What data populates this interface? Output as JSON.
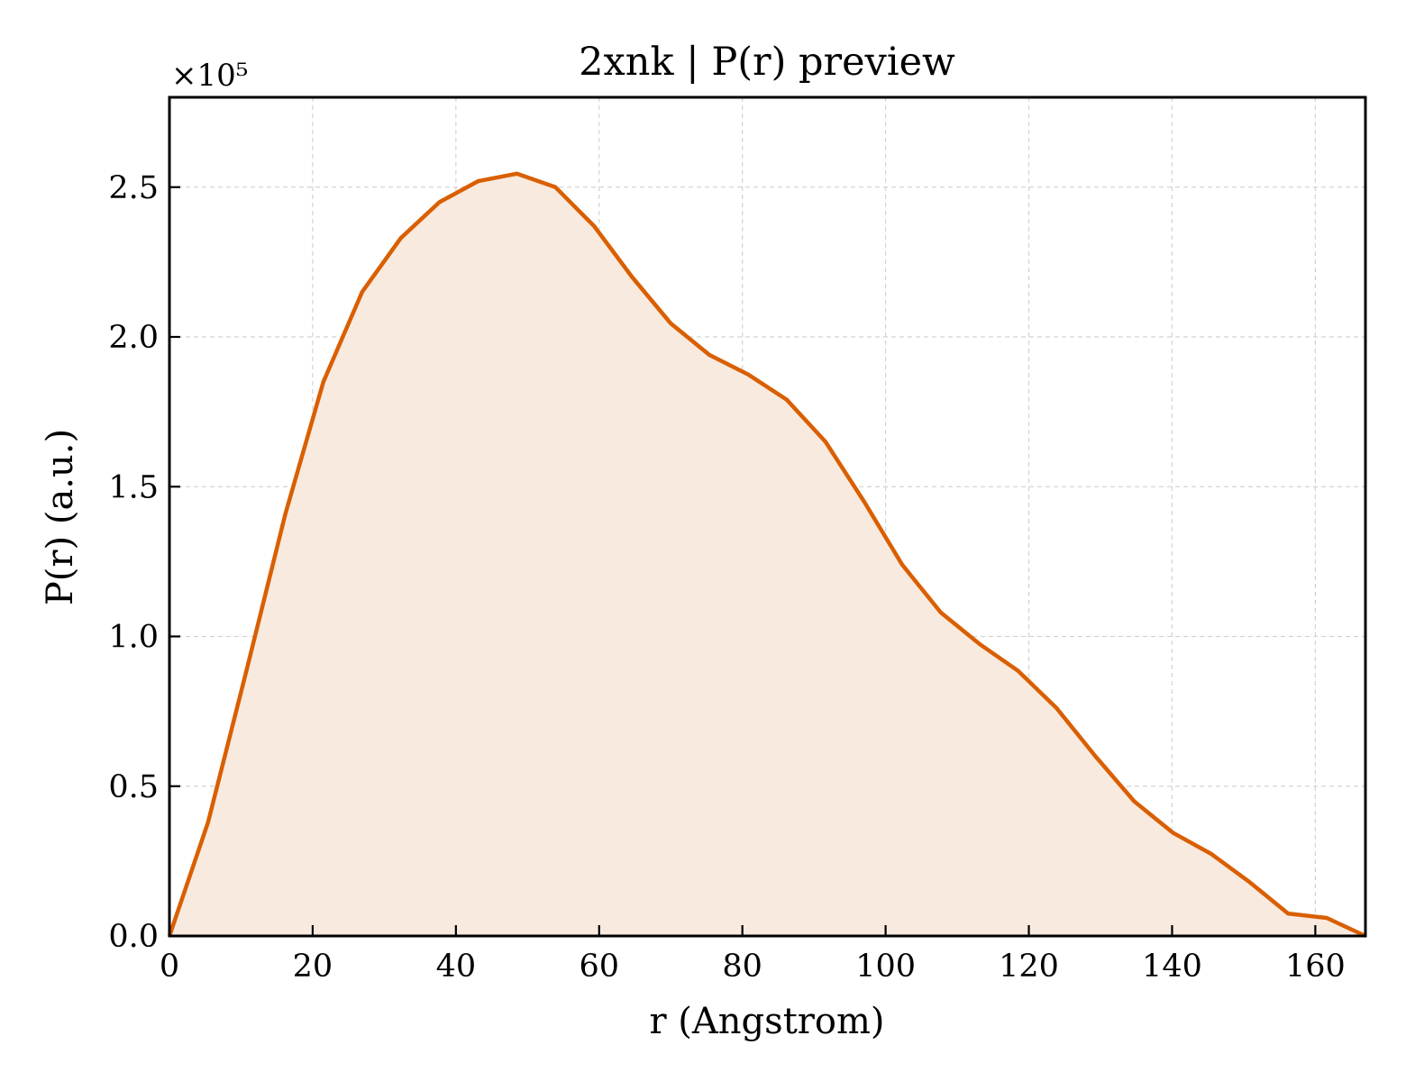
{
  "chart_data": {
    "type": "area",
    "title": "2xnk | P(r) preview",
    "xlabel": "r (Angstrom)",
    "ylabel": "P(r) (a.u.)",
    "y_multiplier_label": "×10⁵",
    "y_scale_factor": 100000,
    "xlim": [
      0,
      167
    ],
    "ylim": [
      0,
      2.8
    ],
    "xticks": [
      0,
      20,
      40,
      60,
      80,
      100,
      120,
      140,
      160
    ],
    "yticks": [
      0.0,
      0.5,
      1.0,
      1.5,
      2.0,
      2.5
    ],
    "xtick_labels": [
      "0",
      "20",
      "40",
      "60",
      "80",
      "100",
      "120",
      "140",
      "160"
    ],
    "ytick_labels": [
      "0.0",
      "0.5",
      "1.0",
      "1.5",
      "2.0",
      "2.5"
    ],
    "grid": true,
    "line_color": "#d95f02",
    "fill_color": "#f9eadf",
    "series": [
      {
        "x": [
          0,
          5.4,
          10.8,
          16.2,
          21.5,
          26.9,
          32.3,
          37.7,
          43.1,
          48.5,
          53.9,
          59.3,
          64.6,
          70.0,
          75.4,
          80.8,
          86.2,
          91.6,
          97.0,
          102.3,
          107.7,
          113.1,
          118.5,
          123.9,
          129.3,
          134.7,
          140.1,
          145.4,
          150.8,
          156.2,
          161.6,
          167.0
        ],
        "y": [
          0.0,
          0.38,
          0.89,
          1.41,
          1.85,
          2.15,
          2.33,
          2.45,
          2.52,
          2.545,
          2.5,
          2.37,
          2.2,
          2.045,
          1.94,
          1.875,
          1.79,
          1.65,
          1.45,
          1.24,
          1.08,
          0.975,
          0.885,
          0.76,
          0.6,
          0.45,
          0.345,
          0.275,
          0.18,
          0.075,
          0.06,
          0.0
        ]
      }
    ]
  }
}
